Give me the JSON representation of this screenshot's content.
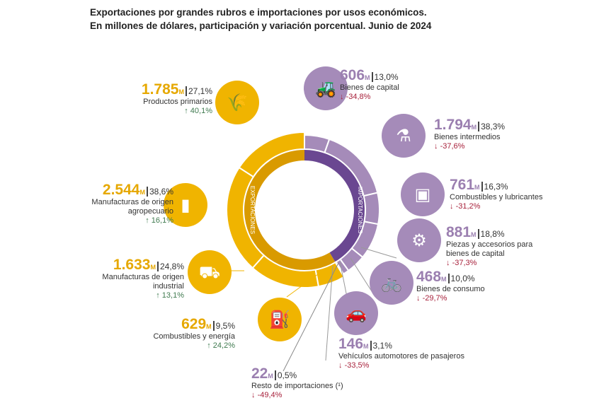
{
  "title": [
    "Exportaciones por grandes rubros e importaciones por usos económicos.",
    "En millones de dólares, participación y variación porcentual. Junio de 2024"
  ],
  "ring_labels": {
    "exports": "EXPORTACIONES",
    "imports": "IMPORTACIONES"
  },
  "colors": {
    "exports": "#f0b400",
    "exports_inner": "#d99a00",
    "imports": "#a58bb9",
    "imports_inner": "#6a4791"
  },
  "chart_data": {
    "type": "pie",
    "unit": "M",
    "exports": [
      {
        "name": "Productos primarios",
        "value": "1.785",
        "share": "27,1%",
        "change": "40,1%",
        "dir": "up",
        "icon": "wheat-icon"
      },
      {
        "name": "Manufacturas de origen agropecuario",
        "value": "2.544",
        "share": "38,6%",
        "change": "16,1%",
        "dir": "up",
        "icon": "bottle-icon"
      },
      {
        "name": "Manufacturas de origen industrial",
        "value": "1.633",
        "share": "24,8%",
        "change": "13,1%",
        "dir": "up",
        "icon": "truck-icon"
      },
      {
        "name": "Combustibles y energía",
        "value": "629",
        "share": "9,5%",
        "change": "24,2%",
        "dir": "up",
        "icon": "fuel-barrel-icon"
      }
    ],
    "imports": [
      {
        "name": "Bienes de capital",
        "value": "606",
        "share": "13,0%",
        "change": "-34,8%",
        "dir": "down",
        "icon": "tractor-icon"
      },
      {
        "name": "Bienes intermedios",
        "value": "1.794",
        "share": "38,3%",
        "change": "-37,6%",
        "dir": "down",
        "icon": "flask-icon"
      },
      {
        "name": "Combustibles y lubricantes",
        "value": "761",
        "share": "16,3%",
        "change": "-31,2%",
        "dir": "down",
        "icon": "jerrycan-icon"
      },
      {
        "name": "Piezas y accesorios para bienes de capital",
        "value": "881",
        "share": "18,8%",
        "change": "-37,3%",
        "dir": "down",
        "icon": "gear-part-icon"
      },
      {
        "name": "Bienes de consumo",
        "value": "468",
        "share": "10,0%",
        "change": "-29,7%",
        "dir": "down",
        "icon": "bicycle-icon"
      },
      {
        "name": "Vehículos automotores de pasajeros",
        "value": "146",
        "share": "3,1%",
        "change": "-33,5%",
        "dir": "down",
        "icon": "car-icon"
      },
      {
        "name": "Resto de importaciones (¹)",
        "value": "22",
        "share": "0,5%",
        "change": "-49,4%",
        "dir": "down",
        "icon": ""
      }
    ]
  }
}
